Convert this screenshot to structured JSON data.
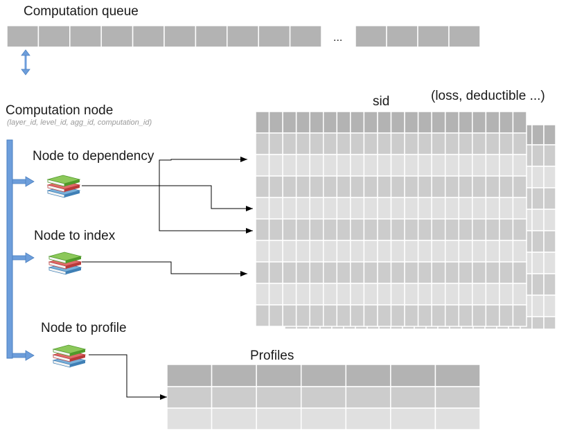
{
  "labels": {
    "queue_title": "Computation queue",
    "queue_ellipsis": "...",
    "node_title": "Computation node",
    "node_key": "(layer_id, level_id, agg_id, computation_id)",
    "node_to_dependency": "Node to dependency",
    "node_to_index": "Node to index",
    "node_to_profile": "Node to profile",
    "sid": "sid",
    "loss_deductible": "(loss, deductible ...)",
    "profiles": "Profiles"
  },
  "icons": {
    "store": "stacked-books-icon",
    "sync": "double-arrow-icon",
    "branch": "right-arrow-icon"
  },
  "colors": {
    "cell_dark": "#b3b3b3",
    "cell_mid": "#cccccc",
    "cell_light": "#e0e0e0",
    "cell_border": "#ffffff",
    "bracket_blue": "#6d9edb",
    "arrow_black": "#000000"
  }
}
